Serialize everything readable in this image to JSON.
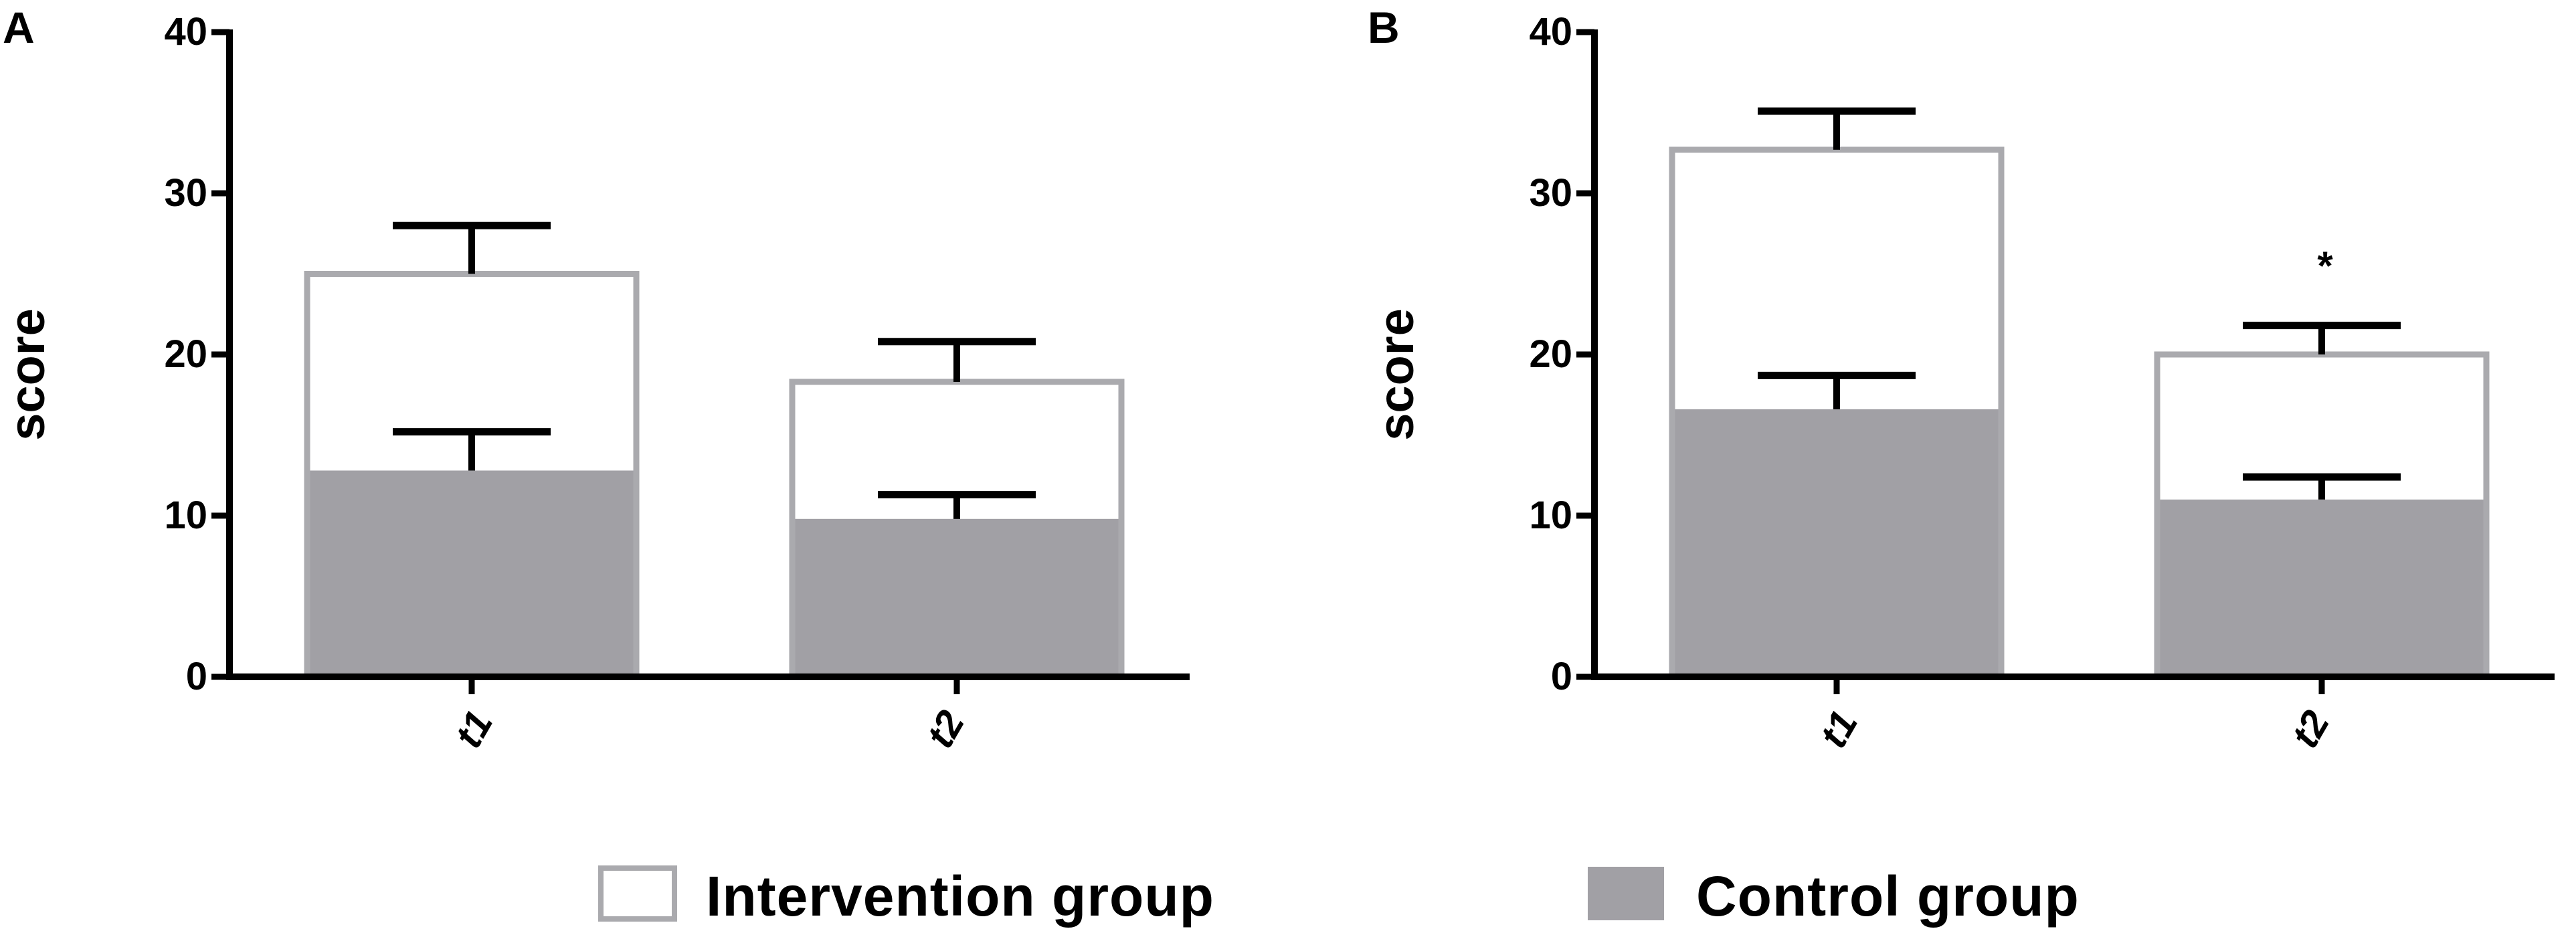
{
  "chart_data": [
    {
      "panel": "A",
      "type": "bar",
      "ylabel": "score",
      "ylim": [
        0,
        40
      ],
      "yticks": [
        "0",
        "10",
        "20",
        "30",
        "40"
      ],
      "categories": [
        "t1",
        "t2"
      ],
      "series": [
        {
          "name": "Intervention group",
          "values": [
            25,
            18.3
          ],
          "error_upper": [
            28,
            20.8
          ],
          "style": "outline"
        },
        {
          "name": "Control group",
          "values": [
            12.8,
            9.8
          ],
          "error_upper": [
            15.2,
            11.3
          ],
          "style": "filled"
        }
      ],
      "annotations": []
    },
    {
      "panel": "B",
      "type": "bar",
      "ylabel": "score",
      "ylim": [
        0,
        40
      ],
      "yticks": [
        "0",
        "10",
        "20",
        "30",
        "40"
      ],
      "categories": [
        "t1",
        "t2"
      ],
      "series": [
        {
          "name": "Intervention group",
          "values": [
            32.7,
            20
          ],
          "error_upper": [
            35.1,
            21.8
          ],
          "style": "outline"
        },
        {
          "name": "Control group",
          "values": [
            16.6,
            11
          ],
          "error_upper": [
            18.7,
            12.4
          ],
          "style": "filled"
        }
      ],
      "annotations": [
        {
          "category": "t2",
          "text": "*"
        }
      ]
    }
  ],
  "legend": {
    "items": [
      {
        "label": "Intervention group",
        "style": "outline"
      },
      {
        "label": "Control group",
        "style": "filled"
      }
    ]
  },
  "colors": {
    "outline": "#aaaaae",
    "filled": "#a1a0a5",
    "axis": "#000000"
  }
}
